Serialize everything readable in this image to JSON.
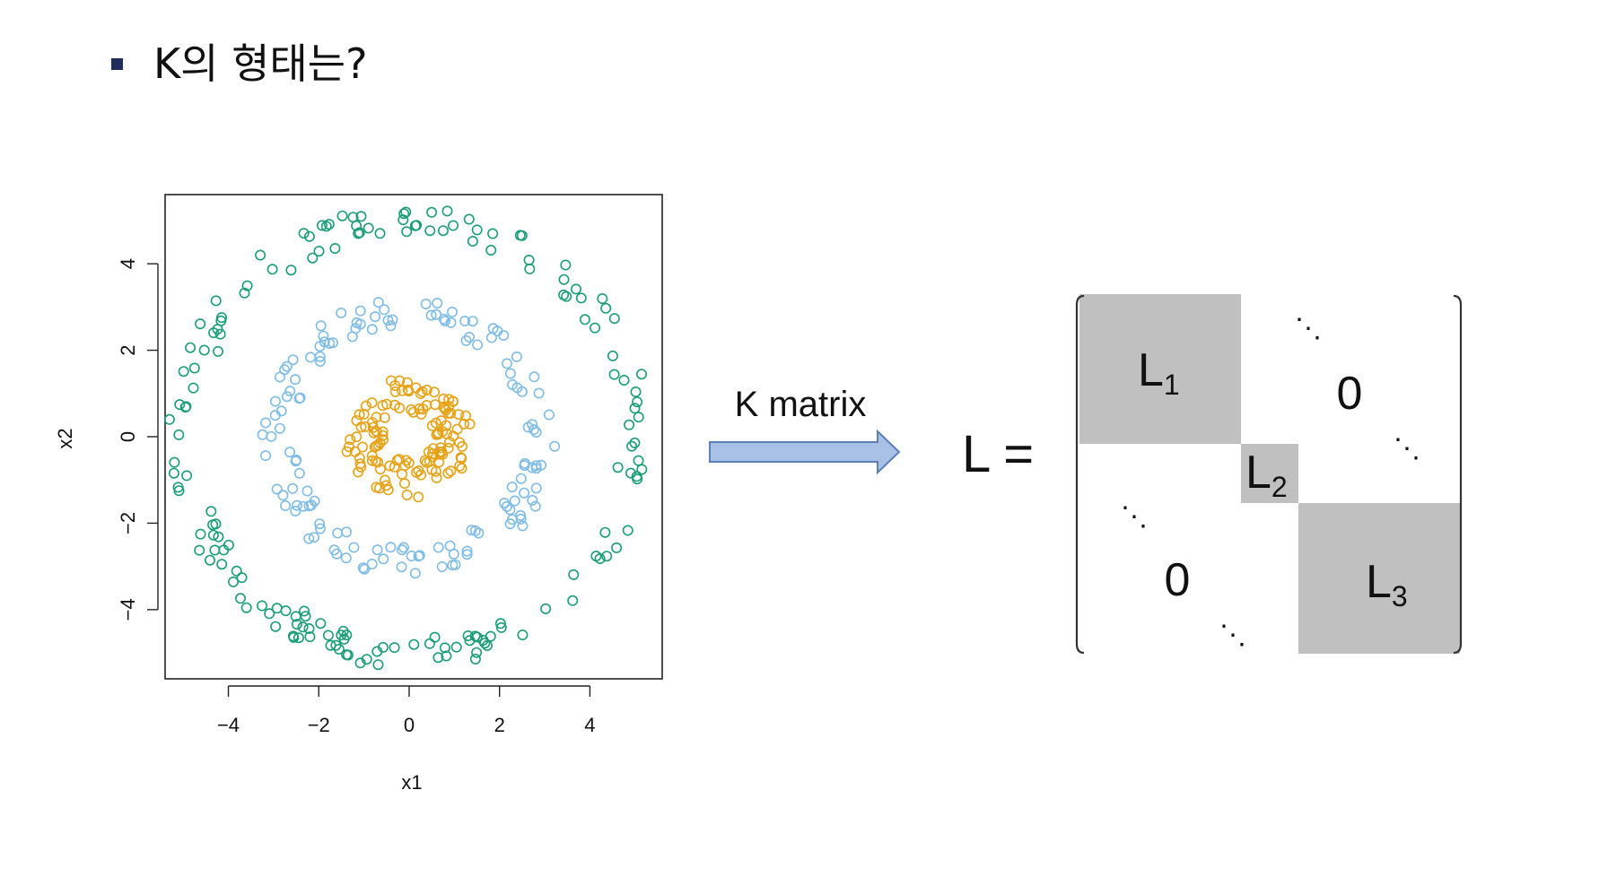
{
  "slide": {
    "heading": "K의 형태는?",
    "arrow_label": "K matrix"
  },
  "chart_data": {
    "type": "scatter",
    "xlabel": "x1",
    "ylabel": "x2",
    "xlim": [
      -5.4,
      5.6
    ],
    "ylim": [
      -5.6,
      5.6
    ],
    "xticks": [
      -4,
      -2,
      0,
      2,
      4
    ],
    "yticks": [
      -4,
      -2,
      0,
      2,
      4
    ],
    "xtick_labels": [
      "−4",
      "−2",
      "0",
      "2",
      "4"
    ],
    "ytick_labels": [
      "−4",
      "−2",
      "0",
      "2",
      "4"
    ],
    "grid": false,
    "marker": "open-circle",
    "series": [
      {
        "color": "#1b9e77",
        "ring_radius": 5.0,
        "count": 170
      },
      {
        "color": "#7fbce6",
        "ring_radius": 2.9,
        "count": 140
      },
      {
        "color": "#e6a317",
        "ring_radius": 1.0,
        "count": 130
      }
    ]
  },
  "matrix": {
    "lhs": "L =",
    "blocks": [
      {
        "letter": "L",
        "sub": "1"
      },
      {
        "letter": "L",
        "sub": "2"
      },
      {
        "letter": "L",
        "sub": "3"
      }
    ],
    "zero_upper": "0",
    "zero_lower": "0",
    "dots": "⋱",
    "block_color": "#c0c0c0"
  }
}
